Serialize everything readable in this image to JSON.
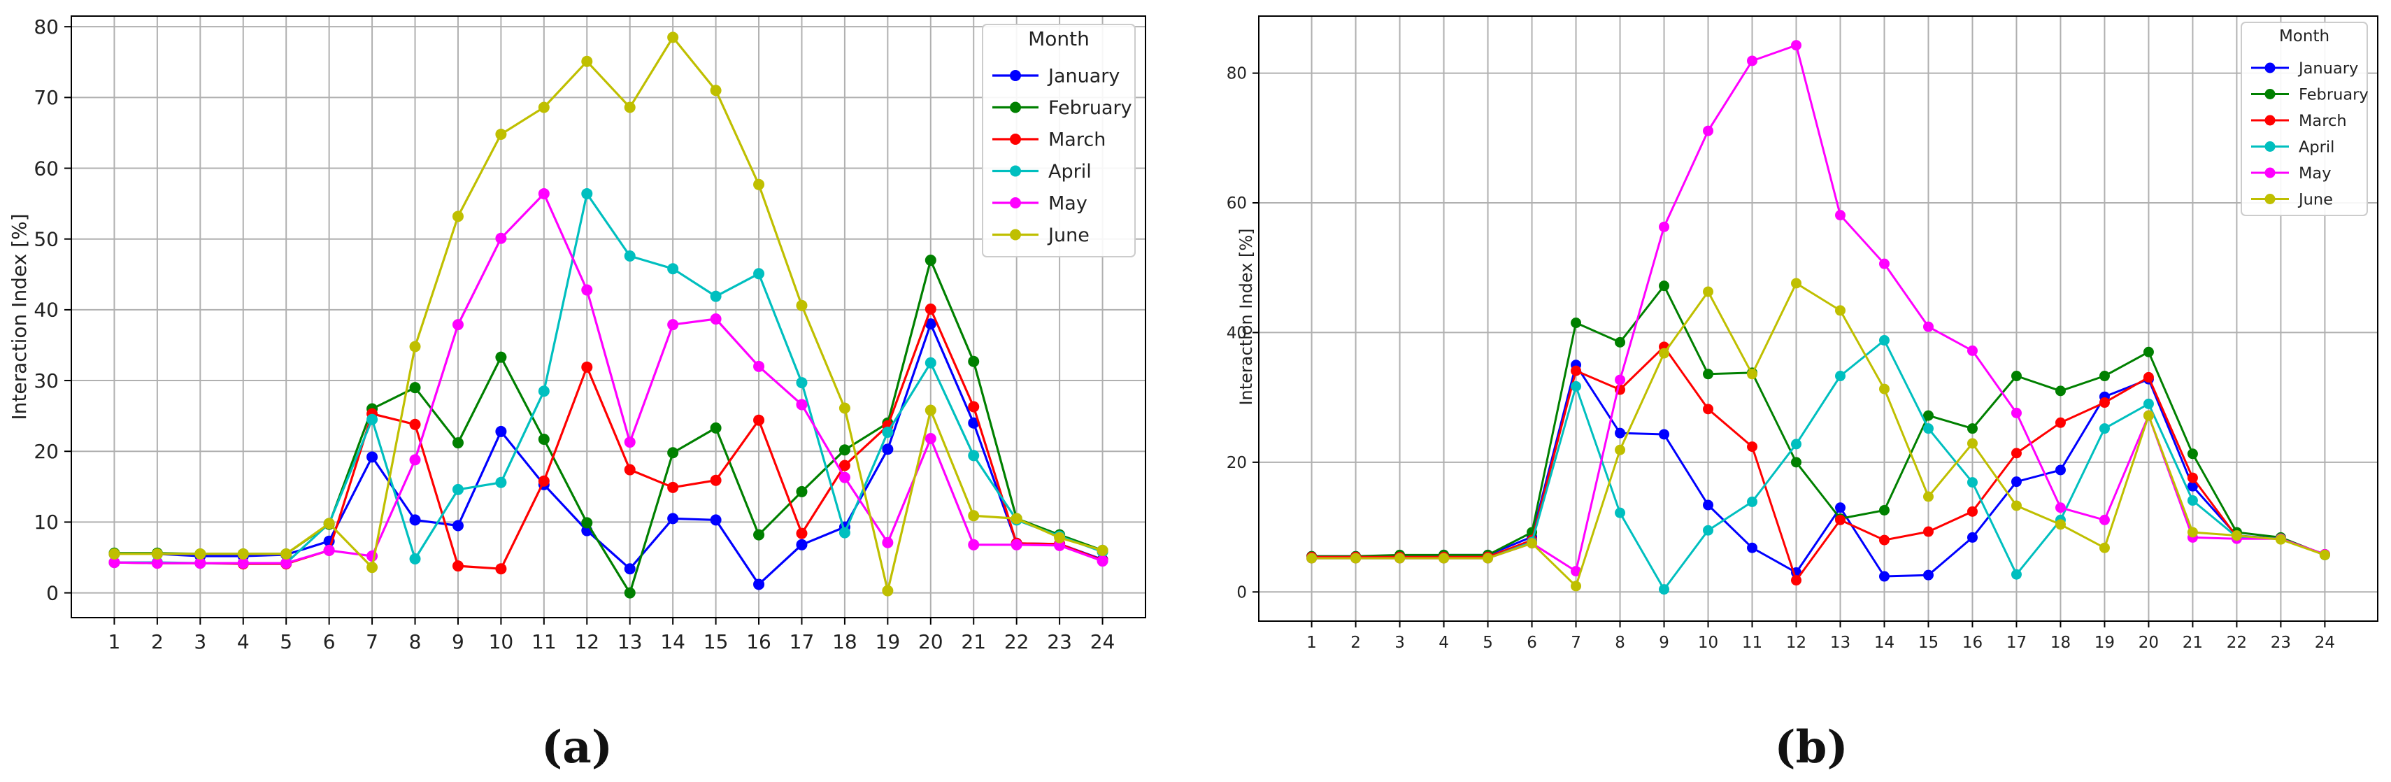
{
  "chart_data": [
    {
      "type": "line",
      "panel_label": "(a)",
      "title": "",
      "xlabel": "",
      "ylabel": "Interaction Index [%]",
      "ylim": [
        -3.5,
        81.5
      ],
      "y_ticks": [
        0,
        10,
        20,
        30,
        40,
        50,
        60,
        70,
        80
      ],
      "y_tick_labels": [
        "0",
        "10",
        "20",
        "30",
        "40",
        "50",
        "60",
        "70",
        "80"
      ],
      "xlim": [
        0.0,
        25.0
      ],
      "categories": [
        "1",
        "2",
        "3",
        "4",
        "5",
        "6",
        "7",
        "8",
        "9",
        "10",
        "11",
        "12",
        "13",
        "14",
        "15",
        "16",
        "17",
        "18",
        "19",
        "20",
        "21",
        "22",
        "23",
        "24"
      ],
      "grid": true,
      "legend_title": "Month",
      "legend_position": "top-right",
      "series": [
        {
          "name": "January",
          "color": "#0000ff",
          "values": [
            5.5,
            5.5,
            5.2,
            5.2,
            5.4,
            7.3,
            19.2,
            10.3,
            9.5,
            22.8,
            15.3,
            8.8,
            3.4,
            10.5,
            10.3,
            1.2,
            6.8,
            9.3,
            20.3,
            38.0,
            24.0,
            7.0,
            6.9,
            4.7
          ]
        },
        {
          "name": "February",
          "color": "#008000",
          "values": [
            5.6,
            5.6,
            5.5,
            5.5,
            5.5,
            9.7,
            26.0,
            29.0,
            21.2,
            33.3,
            21.7,
            9.9,
            0.0,
            19.8,
            23.3,
            8.2,
            14.3,
            20.2,
            24.0,
            47.0,
            32.7,
            10.5,
            8.2,
            6.0
          ]
        },
        {
          "name": "March",
          "color": "#ff0000",
          "values": [
            4.3,
            4.2,
            4.2,
            4.1,
            4.1,
            6.0,
            25.3,
            23.8,
            3.8,
            3.4,
            15.8,
            31.9,
            17.4,
            14.9,
            15.9,
            24.4,
            8.4,
            18.0,
            23.6,
            40.1,
            26.3,
            7.0,
            6.9,
            4.6
          ]
        },
        {
          "name": "April",
          "color": "#00bfbf",
          "values": [
            4.3,
            4.3,
            4.2,
            4.2,
            4.2,
            9.8,
            24.5,
            4.8,
            14.6,
            15.6,
            28.5,
            56.4,
            47.6,
            45.8,
            41.9,
            45.1,
            29.7,
            8.5,
            22.7,
            32.5,
            19.4,
            10.3,
            8.0,
            5.8
          ]
        },
        {
          "name": "May",
          "color": "#ff00ff",
          "values": [
            4.3,
            4.2,
            4.2,
            4.2,
            4.2,
            6.0,
            5.2,
            18.8,
            37.9,
            50.1,
            56.4,
            42.8,
            21.3,
            37.9,
            38.7,
            32.0,
            26.6,
            16.3,
            7.1,
            21.8,
            6.8,
            6.8,
            6.7,
            4.5
          ]
        },
        {
          "name": "June",
          "color": "#bfbf00",
          "values": [
            5.5,
            5.5,
            5.5,
            5.5,
            5.5,
            9.8,
            3.6,
            34.8,
            53.2,
            64.8,
            68.6,
            75.1,
            68.6,
            78.5,
            71.0,
            57.7,
            40.6,
            26.1,
            0.3,
            25.8,
            10.9,
            10.5,
            7.8,
            6.0
          ]
        }
      ]
    },
    {
      "type": "line",
      "panel_label": "(b)",
      "title": "",
      "xlabel": "",
      "ylabel": "Interaction Index [%]",
      "ylim": [
        -4.5,
        88.8
      ],
      "y_ticks": [
        0,
        20,
        40,
        60,
        80
      ],
      "y_tick_labels": [
        "0",
        "20",
        "40",
        "60",
        "80"
      ],
      "xlim": [
        -0.2,
        25.2
      ],
      "categories": [
        "1",
        "2",
        "3",
        "4",
        "5",
        "6",
        "7",
        "8",
        "9",
        "10",
        "11",
        "12",
        "13",
        "14",
        "15",
        "16",
        "17",
        "18",
        "19",
        "20",
        "21",
        "22",
        "23",
        "24"
      ],
      "grid": true,
      "legend_title": "Month",
      "legend_position": "top-right",
      "series": [
        {
          "name": "January",
          "color": "#0000ff",
          "values": [
            5.5,
            5.5,
            5.5,
            5.7,
            5.7,
            8.5,
            35.0,
            24.5,
            24.3,
            13.4,
            6.8,
            3.0,
            13.0,
            2.4,
            2.6,
            8.4,
            17.0,
            18.8,
            30.1,
            32.8,
            16.3,
            8.7,
            8.2,
            5.8
          ]
        },
        {
          "name": "February",
          "color": "#008000",
          "values": [
            5.5,
            5.5,
            5.7,
            5.7,
            5.7,
            9.2,
            41.5,
            38.5,
            47.2,
            33.6,
            33.8,
            20.0,
            11.3,
            12.6,
            27.2,
            25.2,
            33.3,
            31.0,
            33.3,
            37.0,
            21.3,
            9.2,
            8.4,
            5.7
          ]
        },
        {
          "name": "March",
          "color": "#ff0000",
          "values": [
            5.4,
            5.4,
            5.4,
            5.4,
            5.4,
            8.0,
            34.1,
            31.2,
            37.8,
            28.2,
            22.4,
            1.8,
            11.1,
            8.0,
            9.3,
            12.4,
            21.4,
            26.1,
            29.2,
            33.1,
            17.6,
            8.5,
            8.2,
            5.8
          ]
        },
        {
          "name": "April",
          "color": "#00bfbf",
          "values": [
            5.2,
            5.2,
            5.2,
            5.2,
            5.2,
            7.7,
            31.7,
            12.2,
            0.4,
            9.5,
            13.9,
            22.8,
            33.3,
            38.8,
            25.2,
            16.9,
            2.7,
            11.1,
            25.2,
            29.0,
            14.1,
            8.5,
            8.2,
            5.7
          ]
        },
        {
          "name": "May",
          "color": "#ff00ff",
          "values": [
            5.2,
            5.2,
            5.2,
            5.2,
            5.2,
            7.5,
            3.2,
            32.7,
            56.3,
            71.1,
            81.9,
            84.3,
            58.1,
            50.6,
            40.9,
            37.2,
            27.6,
            13.0,
            11.1,
            27.2,
            8.4,
            8.2,
            8.2,
            5.8
          ]
        },
        {
          "name": "June",
          "color": "#bfbf00",
          "values": [
            5.2,
            5.2,
            5.2,
            5.2,
            5.2,
            7.5,
            0.9,
            21.9,
            36.8,
            46.3,
            33.6,
            47.6,
            43.4,
            31.3,
            14.7,
            22.9,
            13.3,
            10.4,
            6.8,
            27.2,
            9.2,
            8.7,
            8.1,
            5.7
          ]
        }
      ]
    }
  ]
}
